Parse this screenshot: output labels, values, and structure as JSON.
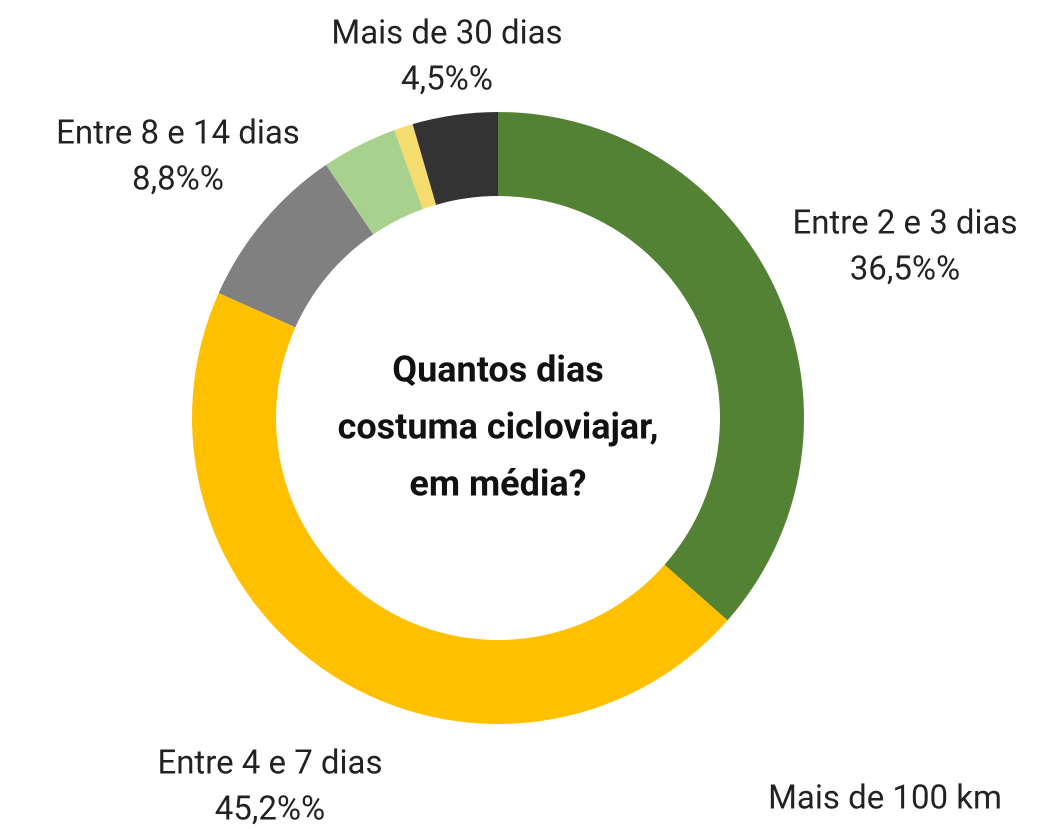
{
  "chart_data": {
    "type": "donut",
    "title": [
      "Quantos dias",
      "costuma cicloviajar,",
      "em média?"
    ],
    "categories": [
      "Entre 2 e 3 dias",
      "Entre 4 e 7 dias",
      "Entre 8 e 14 dias",
      null,
      null,
      "Mais de 30 dias"
    ],
    "values": [
      36.5,
      45.2,
      8.8,
      4.0,
      1.0,
      4.5
    ],
    "value_labels": [
      "36,5%%",
      "45,2%%",
      "8,8%%",
      null,
      null,
      "4,5%%"
    ],
    "colors": [
      "#548235",
      "#ffc000",
      "#808080",
      "#a9d18e",
      "#f5dc6e",
      "#333333"
    ],
    "annotation": "Mais de 100 km"
  }
}
